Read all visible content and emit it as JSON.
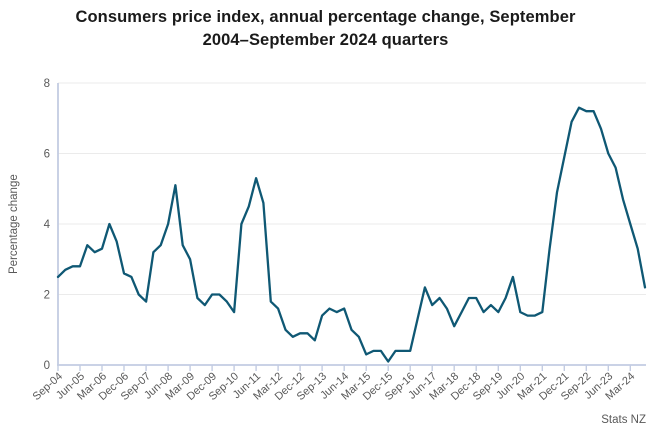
{
  "title": {
    "line1": "Consumers price index, annual percentage change, September",
    "line2": "2004–September 2024 quarters"
  },
  "source": "Stats NZ",
  "chart_data": {
    "type": "line",
    "title": "Consumers price index, annual percentage change, September 2004–September 2024 quarters",
    "ylabel": "Percentage change",
    "xlabel": "",
    "ylim": [
      0,
      8
    ],
    "yticks": [
      0,
      2,
      4,
      6,
      8
    ],
    "grid": true,
    "legend_position": "none",
    "line_color": "#0f5874",
    "axis_color": "#c3cce2",
    "grid_color": "#ebebeb",
    "text_color": "#595959",
    "x": [
      "Sep-04",
      "Dec-04",
      "Mar-05",
      "Jun-05",
      "Sep-05",
      "Dec-05",
      "Mar-06",
      "Jun-06",
      "Sep-06",
      "Dec-06",
      "Mar-07",
      "Jun-07",
      "Sep-07",
      "Dec-07",
      "Mar-08",
      "Jun-08",
      "Sep-08",
      "Dec-08",
      "Mar-09",
      "Jun-09",
      "Sep-09",
      "Dec-09",
      "Mar-10",
      "Jun-10",
      "Sep-10",
      "Dec-10",
      "Mar-11",
      "Jun-11",
      "Sep-11",
      "Dec-11",
      "Mar-12",
      "Jun-12",
      "Sep-12",
      "Dec-12",
      "Mar-13",
      "Jun-13",
      "Sep-13",
      "Dec-13",
      "Mar-14",
      "Jun-14",
      "Sep-14",
      "Dec-14",
      "Mar-15",
      "Jun-15",
      "Sep-15",
      "Dec-15",
      "Mar-16",
      "Jun-16",
      "Sep-16",
      "Dec-16",
      "Mar-17",
      "Jun-17",
      "Sep-17",
      "Dec-17",
      "Mar-18",
      "Jun-18",
      "Sep-18",
      "Dec-18",
      "Mar-19",
      "Jun-19",
      "Sep-19",
      "Dec-19",
      "Mar-20",
      "Jun-20",
      "Sep-20",
      "Dec-20",
      "Mar-21",
      "Jun-21",
      "Sep-21",
      "Dec-21",
      "Mar-22",
      "Jun-22",
      "Sep-22",
      "Dec-22",
      "Mar-23",
      "Jun-23",
      "Sep-23",
      "Dec-23",
      "Mar-24",
      "Jun-24",
      "Sep-24"
    ],
    "values": [
      2.5,
      2.7,
      2.8,
      2.8,
      3.4,
      3.2,
      3.3,
      4.0,
      3.5,
      2.6,
      2.5,
      2.0,
      1.8,
      3.2,
      3.4,
      4.0,
      5.1,
      3.4,
      3.0,
      1.9,
      1.7,
      2.0,
      2.0,
      1.8,
      1.5,
      4.0,
      4.5,
      5.3,
      4.6,
      1.8,
      1.6,
      1.0,
      0.8,
      0.9,
      0.9,
      0.7,
      1.4,
      1.6,
      1.5,
      1.6,
      1.0,
      0.8,
      0.3,
      0.4,
      0.4,
      0.1,
      0.4,
      0.4,
      0.4,
      1.3,
      2.2,
      1.7,
      1.9,
      1.6,
      1.1,
      1.5,
      1.9,
      1.9,
      1.5,
      1.7,
      1.5,
      1.9,
      2.5,
      1.5,
      1.4,
      1.4,
      1.5,
      3.3,
      4.9,
      5.9,
      6.9,
      7.3,
      7.2,
      7.2,
      6.7,
      6.0,
      5.6,
      4.7,
      4.0,
      3.3,
      2.2
    ],
    "xtick_labels": [
      "Sep-04",
      "Jun-05",
      "Mar-06",
      "Dec-06",
      "Sep-07",
      "Jun-08",
      "Mar-09",
      "Dec-09",
      "Sep-10",
      "Jun-11",
      "Mar-12",
      "Dec-12",
      "Sep-13",
      "Jun-14",
      "Mar-15",
      "Dec-15",
      "Sep-16",
      "Jun-17",
      "Mar-18",
      "Dec-18",
      "Sep-19",
      "Jun-20",
      "Mar-21",
      "Dec-21",
      "Sep-22",
      "Jun-23",
      "Mar-24"
    ],
    "xtick_step": 3
  }
}
